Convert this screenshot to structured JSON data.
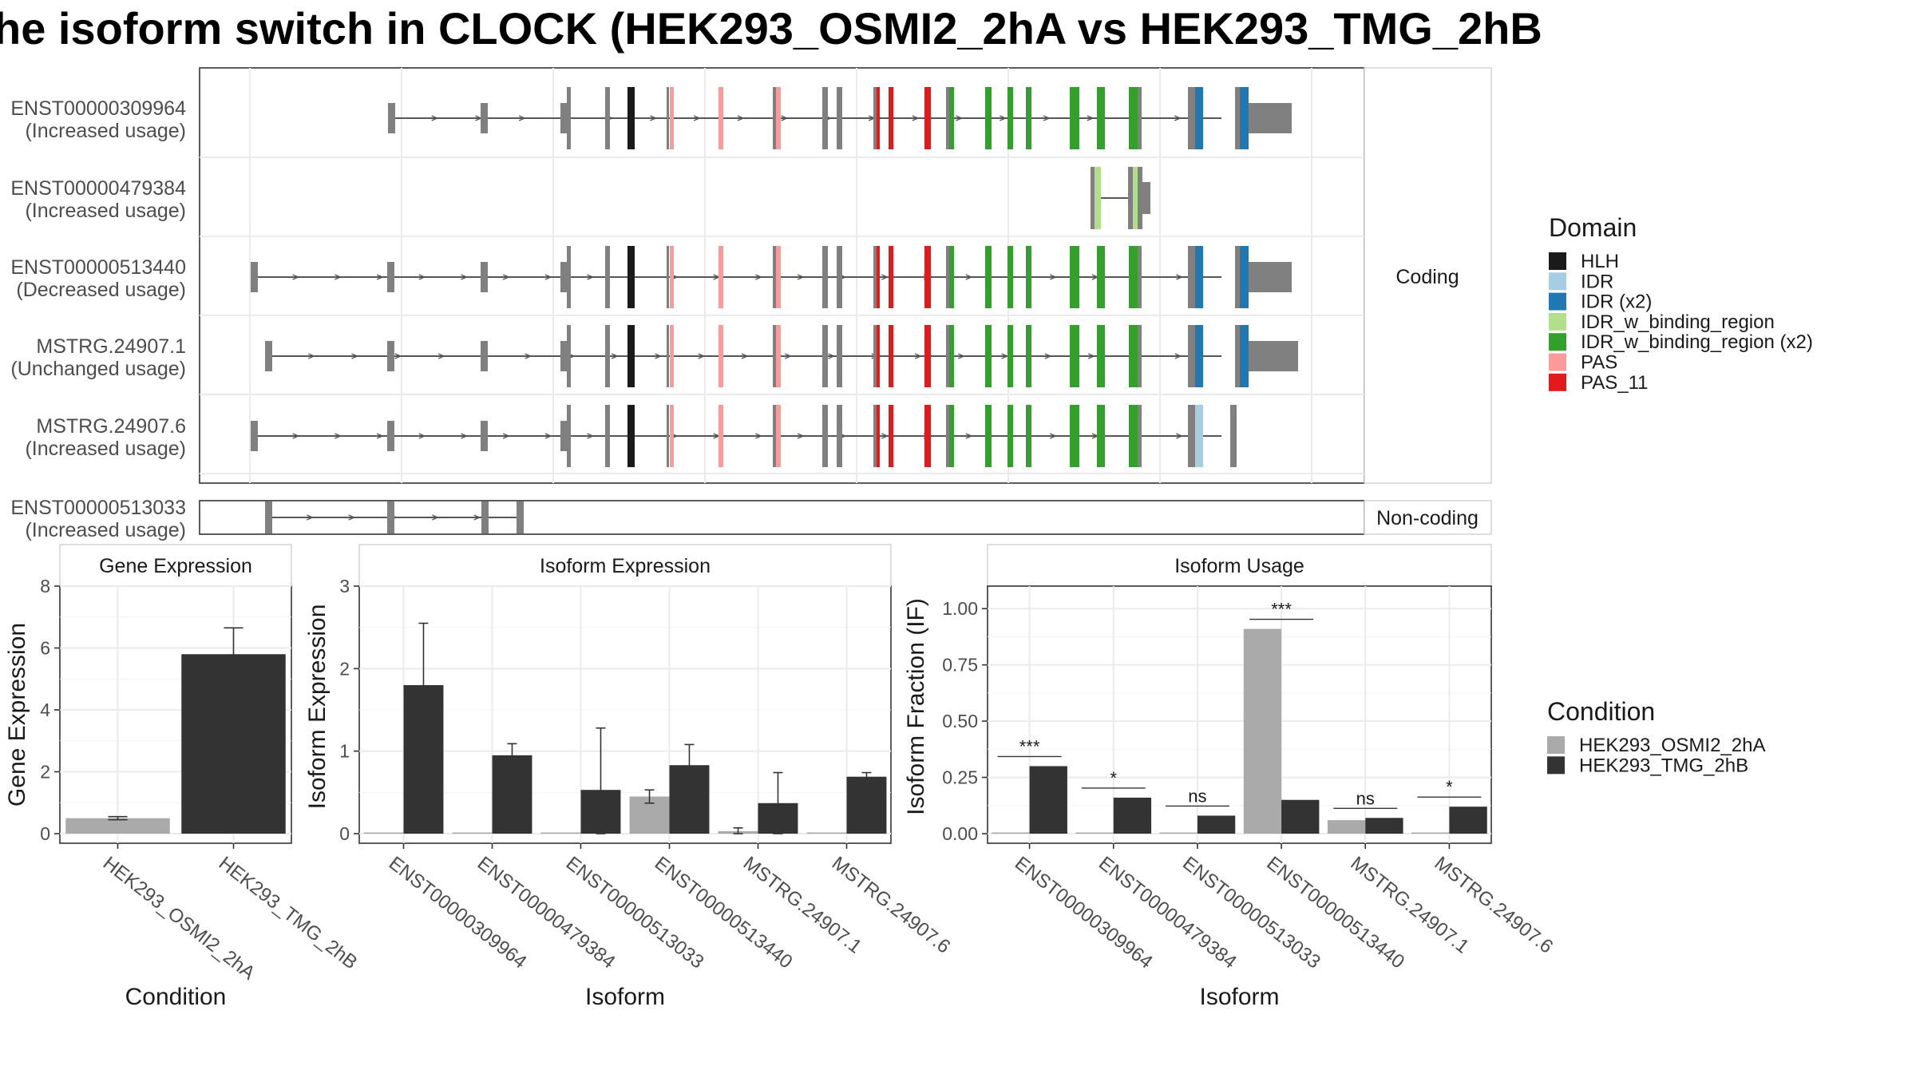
{
  "title": "he isoform switch in CLOCK (HEK293_OSMI2_2hA vs HEK293_TMG_2hB",
  "colors": {
    "grey_exon": "#808080",
    "cond_a": "#aaaaaa",
    "cond_b": "#333333",
    "HLH": "#1a1a1a",
    "IDR": "#a6cee3",
    "IDR (x2)": "#1f78b4",
    "IDR_w_binding_region": "#b2df8a",
    "IDR_w_binding_region (x2)": "#33a02c",
    "PAS": "#fb9a99",
    "PAS_11": "#e31a1c"
  },
  "structure": {
    "coding_strip": "Coding",
    "noncoding_strip": "Non-coding",
    "transcripts": [
      {
        "id": "ENST00000309964",
        "usage": "(Increased usage)",
        "group": "coding",
        "features": [
          "utr5_a",
          "utr5_b",
          "utr5_c",
          "cds_1",
          "HLH",
          "PAS",
          "PAS",
          "PAS",
          "cds_grey",
          "PAS_11",
          "PAS_11",
          "IDR_w_binding_region (x2)",
          "IDR_w_binding_region (x2)",
          "IDR (x2)",
          "IDR (x2)",
          "utr3"
        ]
      },
      {
        "id": "ENST00000479384",
        "usage": "(Increased usage)",
        "group": "coding",
        "features": [
          "IDR_w_binding_region",
          "IDR_w_binding_region",
          "utr3_short"
        ]
      },
      {
        "id": "ENST00000513440",
        "usage": "(Decreased usage)",
        "group": "coding",
        "features": [
          "utr5_a",
          "utr5_b",
          "utr5_c",
          "cds_1",
          "HLH",
          "PAS",
          "PAS",
          "PAS",
          "cds_grey",
          "PAS_11",
          "PAS_11",
          "IDR_w_binding_region (x2)",
          "IDR_w_binding_region (x2)",
          "IDR (x2)",
          "IDR (x2)",
          "utr3"
        ]
      },
      {
        "id": "MSTRG.24907.1",
        "usage": "(Unchanged usage)",
        "group": "coding",
        "features": [
          "utr5_a",
          "utr5_b",
          "utr5_c",
          "cds_1",
          "HLH",
          "PAS",
          "PAS",
          "PAS",
          "cds_grey",
          "PAS_11",
          "PAS_11",
          "IDR_w_binding_region (x2)",
          "IDR_w_binding_region (x2)",
          "IDR (x2)",
          "IDR (x2)",
          "utr3"
        ]
      },
      {
        "id": "MSTRG.24907.6",
        "usage": "(Increased usage)",
        "group": "coding",
        "features": [
          "utr5_a",
          "utr5_b",
          "utr5_c",
          "cds_1",
          "HLH",
          "PAS",
          "PAS",
          "PAS",
          "cds_grey",
          "PAS_11",
          "PAS_11",
          "IDR_w_binding_region (x2)",
          "IDR_w_binding_region (x2)",
          "IDR",
          "cds_end"
        ]
      },
      {
        "id": "ENST00000513033",
        "usage": "(Increased usage)",
        "group": "noncoding",
        "features": [
          "exon_a",
          "exon_b",
          "exon_c",
          "exon_d"
        ]
      }
    ]
  },
  "legend_domain": {
    "title": "Domain",
    "entries": [
      "HLH",
      "IDR",
      "IDR (x2)",
      "IDR_w_binding_region",
      "IDR_w_binding_region (x2)",
      "PAS",
      "PAS_11"
    ]
  },
  "legend_condition": {
    "title": "Condition",
    "entries": [
      "HEK293_OSMI2_2hA",
      "HEK293_TMG_2hB"
    ]
  },
  "chart_data": [
    {
      "type": "bar",
      "title": "Gene Expression",
      "xlabel": "Condition",
      "ylabel": "Gene Expression",
      "ylim": [
        0,
        8
      ],
      "yticks": [
        0,
        2,
        4,
        6,
        8
      ],
      "categories": [
        "HEK293_OSMI2_2hA",
        "HEK293_TMG_2hB"
      ],
      "values": [
        0.5,
        5.8
      ],
      "error": [
        [
          0.45,
          0.55
        ],
        [
          4.9,
          6.65
        ]
      ]
    },
    {
      "type": "bar",
      "title": "Isoform Expression",
      "xlabel": "Isoform",
      "ylabel": "Isoform Expression",
      "ylim": [
        0,
        3
      ],
      "yticks": [
        0,
        1,
        2,
        3
      ],
      "categories": [
        "ENST00000309964",
        "ENST00000479384",
        "ENST00000513033",
        "ENST00000513440",
        "MSTRG.24907.1",
        "MSTRG.24907.6"
      ],
      "series": [
        {
          "name": "HEK293_OSMI2_2hA",
          "values": [
            0.0,
            0.0,
            0.0,
            0.45,
            0.03,
            0.0
          ],
          "error": [
            null,
            null,
            null,
            [
              0.37,
              0.53
            ],
            [
              0.0,
              0.07
            ],
            null
          ]
        },
        {
          "name": "HEK293_TMG_2hB",
          "values": [
            1.8,
            0.95,
            0.53,
            0.83,
            0.37,
            0.69
          ],
          "error": [
            [
              1.05,
              2.55
            ],
            [
              0.8,
              1.09
            ],
            [
              0.0,
              1.28
            ],
            [
              0.58,
              1.08
            ],
            [
              0.0,
              0.74
            ],
            [
              0.64,
              0.74
            ]
          ]
        }
      ]
    },
    {
      "type": "bar",
      "title": "Isoform Usage",
      "xlabel": "Isoform",
      "ylabel": "Isoform Fraction (IF)",
      "ylim": [
        0,
        1.1
      ],
      "yticks": [
        0,
        0.25,
        0.5,
        0.75,
        1.0
      ],
      "ytick_labels": [
        "0.00",
        "0.25",
        "0.50",
        "0.75",
        "1.00"
      ],
      "categories": [
        "ENST00000309964",
        "ENST00000479384",
        "ENST00000513033",
        "ENST00000513440",
        "MSTRG.24907.1",
        "MSTRG.24907.6"
      ],
      "series": [
        {
          "name": "HEK293_OSMI2_2hA",
          "values": [
            0.0,
            0.0,
            0.0,
            0.91,
            0.06,
            0.0
          ]
        },
        {
          "name": "HEK293_TMG_2hB",
          "values": [
            0.3,
            0.16,
            0.08,
            0.15,
            0.07,
            0.12
          ]
        }
      ],
      "significance": [
        "***",
        "*",
        "ns",
        "***",
        "ns",
        "*"
      ]
    }
  ]
}
